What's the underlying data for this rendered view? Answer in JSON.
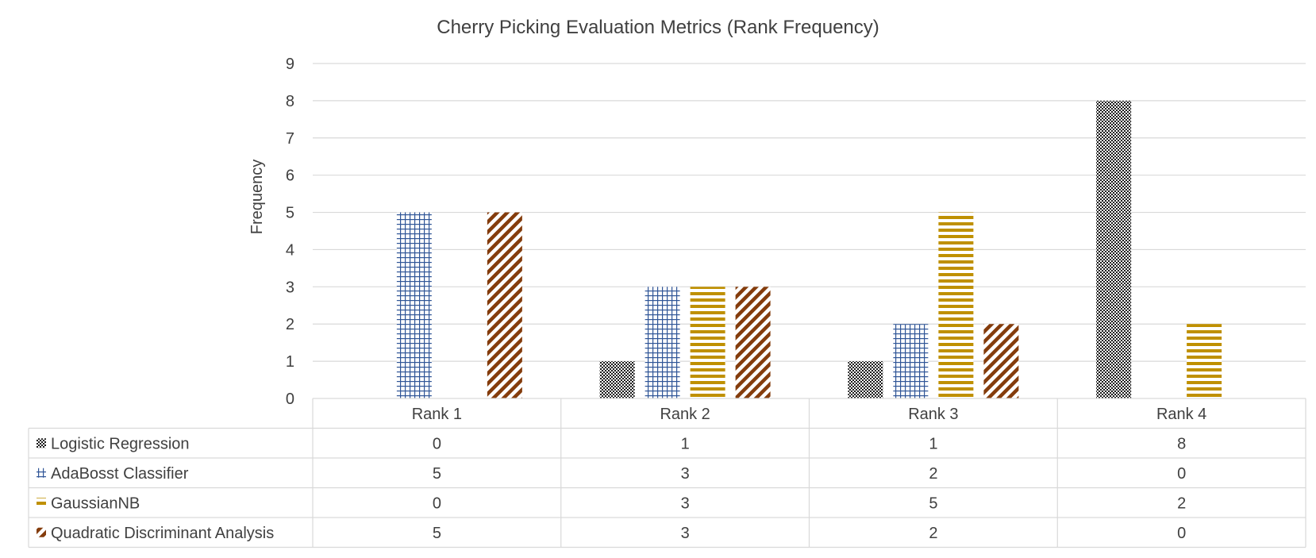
{
  "chart_data": {
    "type": "bar",
    "title": "Cherry Picking Evaluation Metrics (Rank Frequency)",
    "xlabel": "",
    "ylabel": "Frequency",
    "categories": [
      "Rank 1",
      "Rank 2",
      "Rank 3",
      "Rank 4"
    ],
    "ylim": [
      0,
      9
    ],
    "yticks": [
      0,
      1,
      2,
      3,
      4,
      5,
      6,
      7,
      8,
      9
    ],
    "grid": true,
    "legend": "data-table",
    "series": [
      {
        "name": "Logistic Regression",
        "values": [
          0,
          1,
          1,
          8
        ],
        "color": "#1a1a1a",
        "pattern": "dots"
      },
      {
        "name": "AdaBosst Classifier",
        "values": [
          5,
          3,
          2,
          0
        ],
        "color": "#2f5597",
        "pattern": "grid"
      },
      {
        "name": "GaussianNB",
        "values": [
          0,
          3,
          5,
          2
        ],
        "color": "#bf9000",
        "pattern": "horizontal-lines"
      },
      {
        "name": "Quadratic Discriminant Analysis",
        "values": [
          5,
          3,
          2,
          0
        ],
        "color": "#843c0c",
        "pattern": "diagonal-lines"
      }
    ]
  }
}
